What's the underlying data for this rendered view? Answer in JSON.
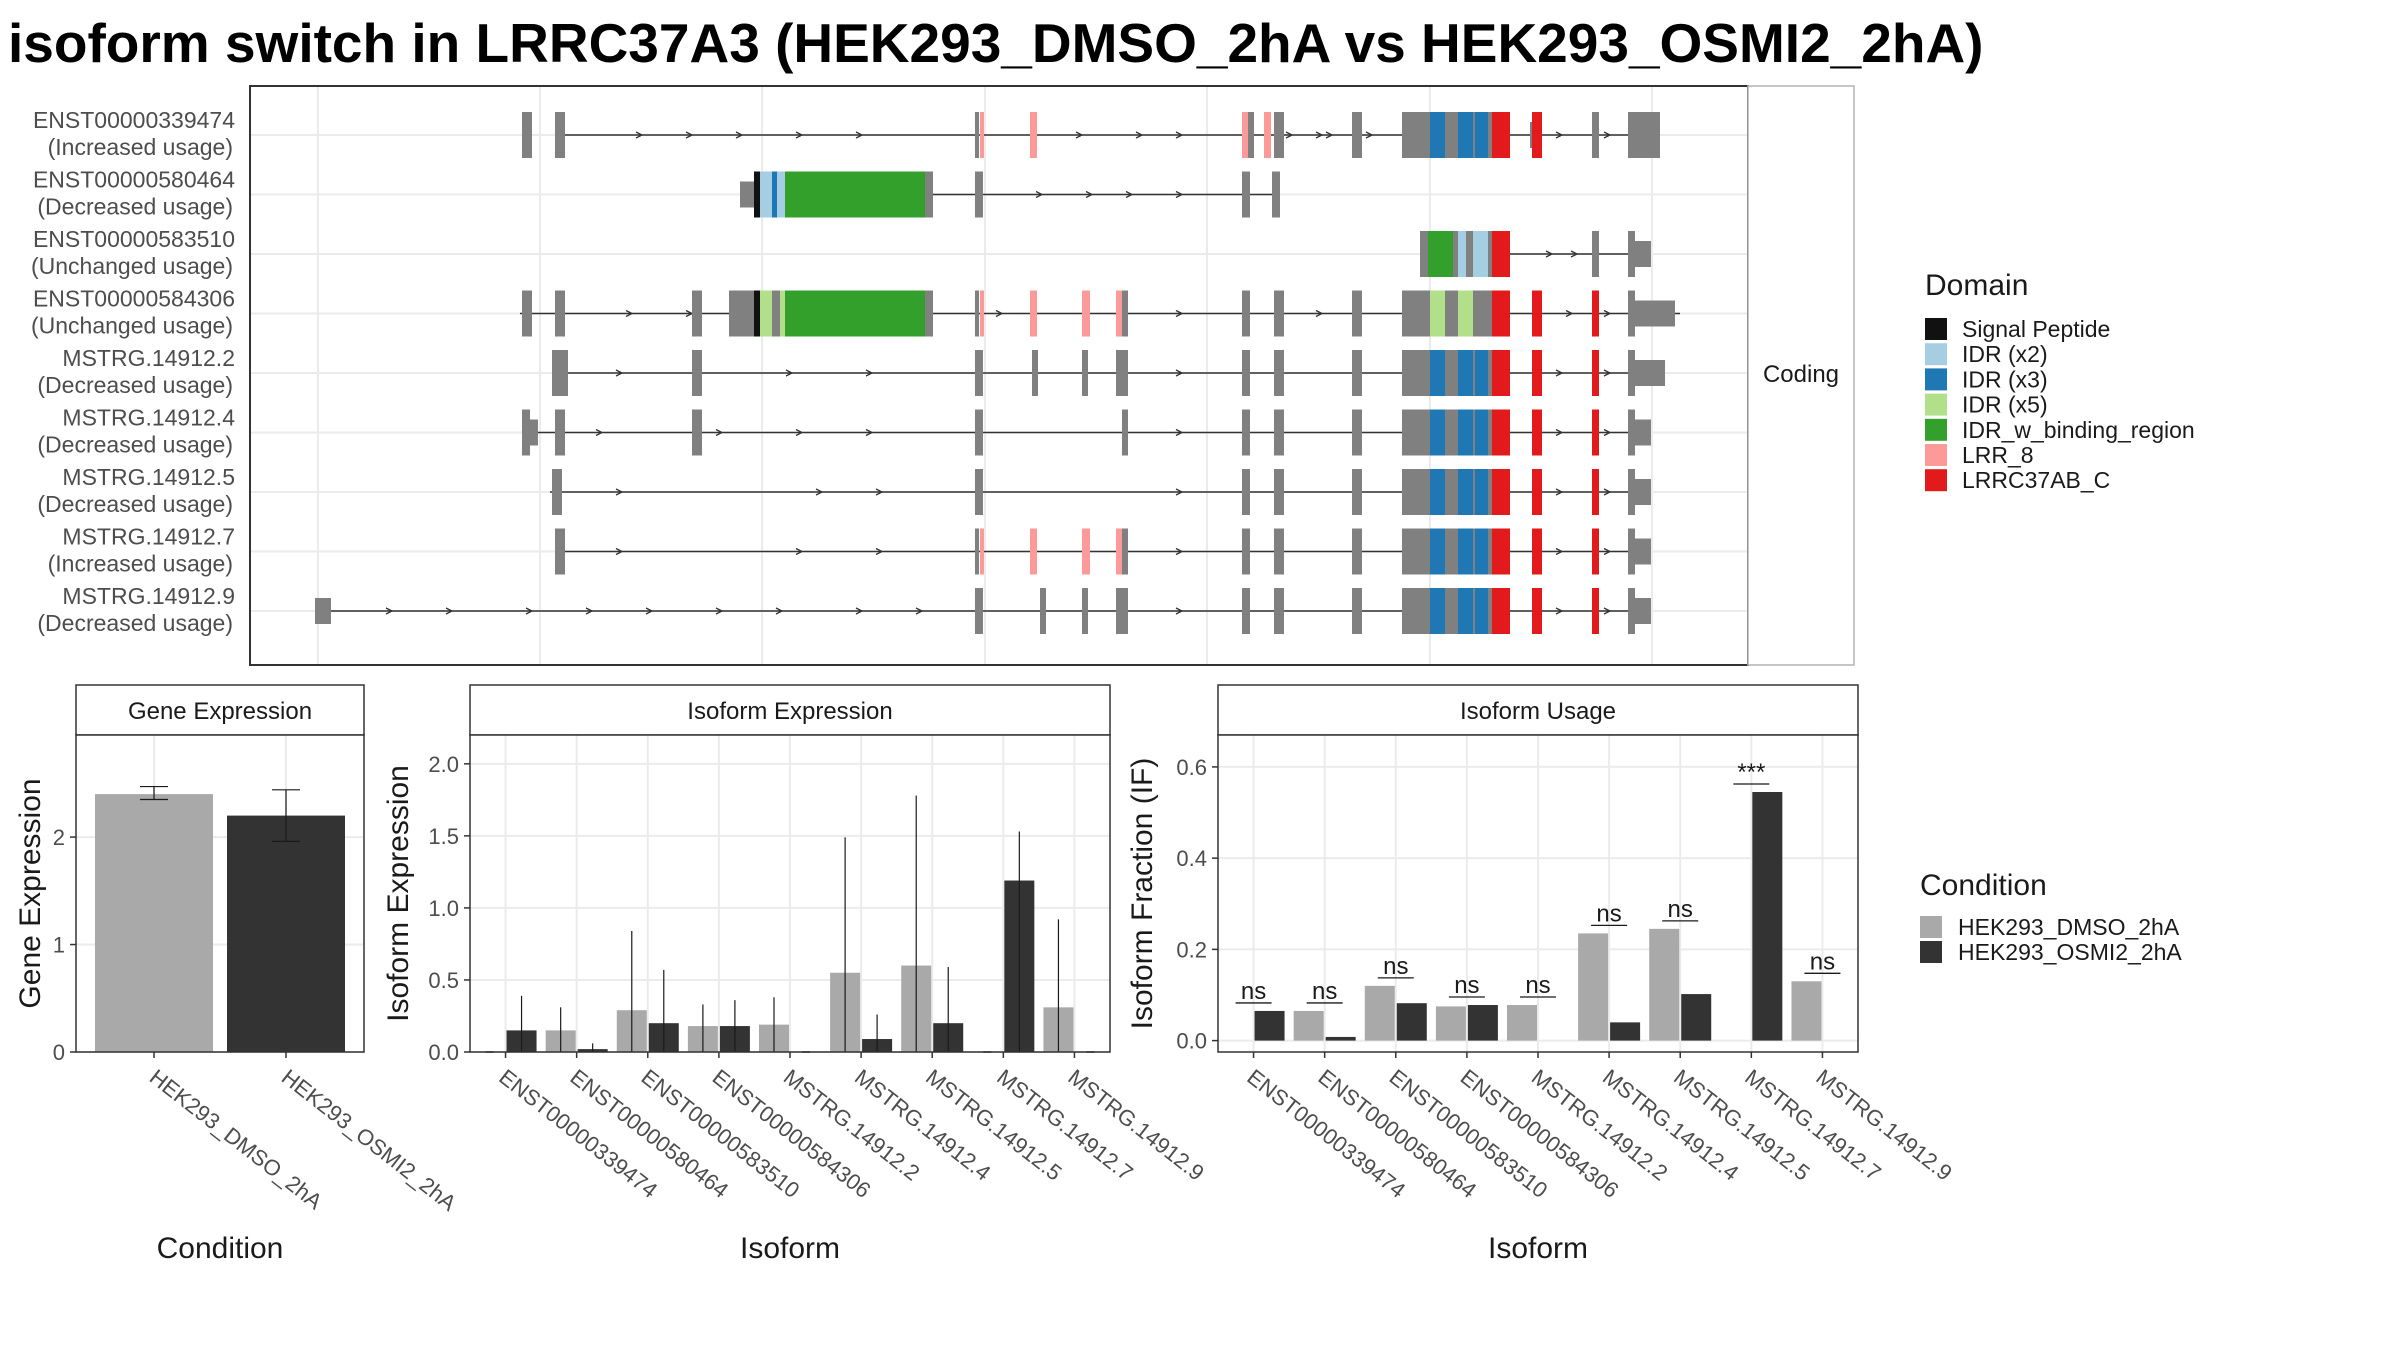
{
  "title": "isoform switch in LRRC37A3 (HEK293_DMSO_2hA vs HEK293_OSMI2_2hA)",
  "colors": {
    "condition": {
      "HEK293_DMSO_2hA": "#a9a9a9",
      "HEK293_OSMI2_2hA": "#333333"
    },
    "exon": "#808080",
    "domain": {
      "Signal Peptide": "#111111",
      "IDR (x2)": "#a6cee3",
      "IDR (x3)": "#1f78b4",
      "IDR (x5)": "#b2df8a",
      "IDR_w_binding_region": "#33a02c",
      "LRR_8": "#fb9a99",
      "LRRC37AB_C": "#e31a1c"
    }
  },
  "structure": {
    "facet_label": "Coding",
    "transcripts": [
      {
        "id": "ENST00000339474",
        "usage": "(Increased usage)"
      },
      {
        "id": "ENST00000580464",
        "usage": "(Decreased usage)"
      },
      {
        "id": "ENST00000583510",
        "usage": "(Unchanged usage)"
      },
      {
        "id": "ENST00000584306",
        "usage": "(Unchanged usage)"
      },
      {
        "id": "MSTRG.14912.2",
        "usage": "(Decreased usage)"
      },
      {
        "id": "MSTRG.14912.4",
        "usage": "(Decreased usage)"
      },
      {
        "id": "MSTRG.14912.5",
        "usage": "(Decreased usage)"
      },
      {
        "id": "MSTRG.14912.7",
        "usage": "(Increased usage)"
      },
      {
        "id": "MSTRG.14912.9",
        "usage": "(Decreased usage)"
      }
    ],
    "legend": {
      "title": "Domain",
      "items": [
        "Signal Peptide",
        "IDR (x2)",
        "IDR (x3)",
        "IDR (x5)",
        "IDR_w_binding_region",
        "LRR_8",
        "LRRC37AB_C"
      ]
    }
  },
  "condition_legend": {
    "title": "Condition",
    "items": [
      "HEK293_DMSO_2hA",
      "HEK293_OSMI2_2hA"
    ]
  },
  "chart_data": [
    {
      "type": "bar",
      "title": "Gene Expression",
      "xlabel": "Condition",
      "ylabel": "Gene Expression",
      "categories": [
        "HEK293_DMSO_2hA",
        "HEK293_OSMI2_2hA"
      ],
      "values": [
        2.4,
        2.2
      ],
      "error_low": [
        2.35,
        1.96
      ],
      "error_high": [
        2.47,
        2.44
      ],
      "ylim": [
        0,
        2.95
      ],
      "yticks": [
        "0",
        "1",
        "2"
      ],
      "grid": true
    },
    {
      "type": "bar",
      "title": "Isoform Expression",
      "xlabel": "Isoform",
      "ylabel": "Isoform Expression",
      "categories": [
        "ENST00000339474",
        "ENST00000580464",
        "ENST00000583510",
        "ENST00000584306",
        "MSTRG.14912.2",
        "MSTRG.14912.4",
        "MSTRG.14912.5",
        "MSTRG.14912.7",
        "MSTRG.14912.9"
      ],
      "series": [
        {
          "name": "HEK293_DMSO_2hA",
          "values": [
            0,
            0.15,
            0.29,
            0.18,
            0.19,
            0.55,
            0.6,
            0,
            0.31
          ],
          "err_high": [
            0,
            0.31,
            0.84,
            0.33,
            0.38,
            1.49,
            1.78,
            0,
            0.92
          ]
        },
        {
          "name": "HEK293_OSMI2_2hA",
          "values": [
            0.15,
            0.02,
            0.2,
            0.18,
            0,
            0.09,
            0.2,
            1.19,
            0
          ],
          "err_high": [
            0.39,
            0.06,
            0.57,
            0.36,
            0,
            0.26,
            0.59,
            1.53,
            0
          ]
        }
      ],
      "ylim": [
        0,
        2.2
      ],
      "yticks": [
        "0.0",
        "0.5",
        "1.0",
        "1.5",
        "2.0"
      ],
      "grid": true
    },
    {
      "type": "bar",
      "title": "Isoform Usage",
      "xlabel": "Isoform",
      "ylabel": "Isoform Fraction (IF)",
      "categories": [
        "ENST00000339474",
        "ENST00000580464",
        "ENST00000583510",
        "ENST00000584306",
        "MSTRG.14912.2",
        "MSTRG.14912.4",
        "MSTRG.14912.5",
        "MSTRG.14912.7",
        "MSTRG.14912.9"
      ],
      "series": [
        {
          "name": "HEK293_DMSO_2hA",
          "values": [
            0,
            0.065,
            0.12,
            0.075,
            0.078,
            0.235,
            0.245,
            0,
            0.13
          ]
        },
        {
          "name": "HEK293_OSMI2_2hA",
          "values": [
            0.065,
            0.008,
            0.082,
            0.078,
            0,
            0.04,
            0.102,
            0.545,
            0
          ]
        }
      ],
      "significance": [
        "ns",
        "ns",
        "ns",
        "ns",
        "ns",
        "ns",
        "ns",
        "***",
        "ns"
      ],
      "ylim": [
        -0.025,
        0.67
      ],
      "yticks": [
        "0.0",
        "0.2",
        "0.4",
        "0.6"
      ],
      "grid": true
    }
  ]
}
